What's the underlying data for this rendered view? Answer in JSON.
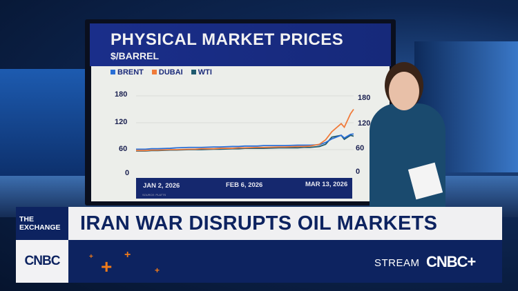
{
  "lower_third": {
    "show": "THE EXCHANGE",
    "network": "CNBC",
    "headline": "IRAN WAR DISRUPTS OIL MARKETS",
    "stream_label": "STREAM",
    "stream_brand": "CNBC+"
  },
  "colors": {
    "brent": "#2a6fd6",
    "dubai": "#f07b3a",
    "wti": "#1f5a6e",
    "navy": "#0d2360"
  },
  "chart_data": {
    "type": "line",
    "title": "PHYSICAL MARKET PRICES",
    "subtitle": "$/BARREL",
    "source": "SOURCE: PLATTS",
    "ylim": [
      0,
      180
    ],
    "yticks": [
      "180",
      "120",
      "60",
      "0"
    ],
    "xtick_labels": [
      "JAN 2, 2026",
      "FEB 6, 2026",
      "MAR 13, 2026"
    ],
    "grid": true,
    "legend": "top-left",
    "x": [
      "2026-01-02",
      "2026-01-05",
      "2026-01-07",
      "2026-01-09",
      "2026-01-13",
      "2026-01-15",
      "2026-01-19",
      "2026-01-21",
      "2026-01-23",
      "2026-01-27",
      "2026-01-29",
      "2026-02-02",
      "2026-02-04",
      "2026-02-06",
      "2026-02-10",
      "2026-02-12",
      "2026-02-17",
      "2026-02-19",
      "2026-02-23",
      "2026-02-25",
      "2026-02-27",
      "2026-03-02",
      "2026-03-04",
      "2026-03-06",
      "2026-03-09",
      "2026-03-10",
      "2026-03-12",
      "2026-03-13"
    ],
    "series": [
      {
        "name": "BRENT",
        "color": "#2a6fd6",
        "values": [
          61,
          61,
          62,
          62,
          63,
          64,
          65,
          65,
          65,
          66,
          66,
          67,
          67,
          68,
          68,
          69,
          69,
          69,
          70,
          70,
          70,
          71,
          76,
          84,
          92,
          86,
          94,
          95
        ]
      },
      {
        "name": "DUBAI",
        "color": "#f07b3a",
        "values": [
          58,
          58,
          59,
          59,
          60,
          60,
          61,
          61,
          62,
          62,
          63,
          63,
          64,
          64,
          65,
          65,
          66,
          66,
          67,
          67,
          68,
          72,
          82,
          100,
          118,
          110,
          140,
          150
        ]
      },
      {
        "name": "WTI",
        "color": "#1f5a6e",
        "values": [
          57,
          57,
          58,
          58,
          59,
          59,
          60,
          60,
          60,
          61,
          61,
          62,
          62,
          63,
          63,
          63,
          64,
          64,
          64,
          65,
          65,
          67,
          72,
          88,
          92,
          83,
          92,
          90
        ]
      }
    ]
  }
}
